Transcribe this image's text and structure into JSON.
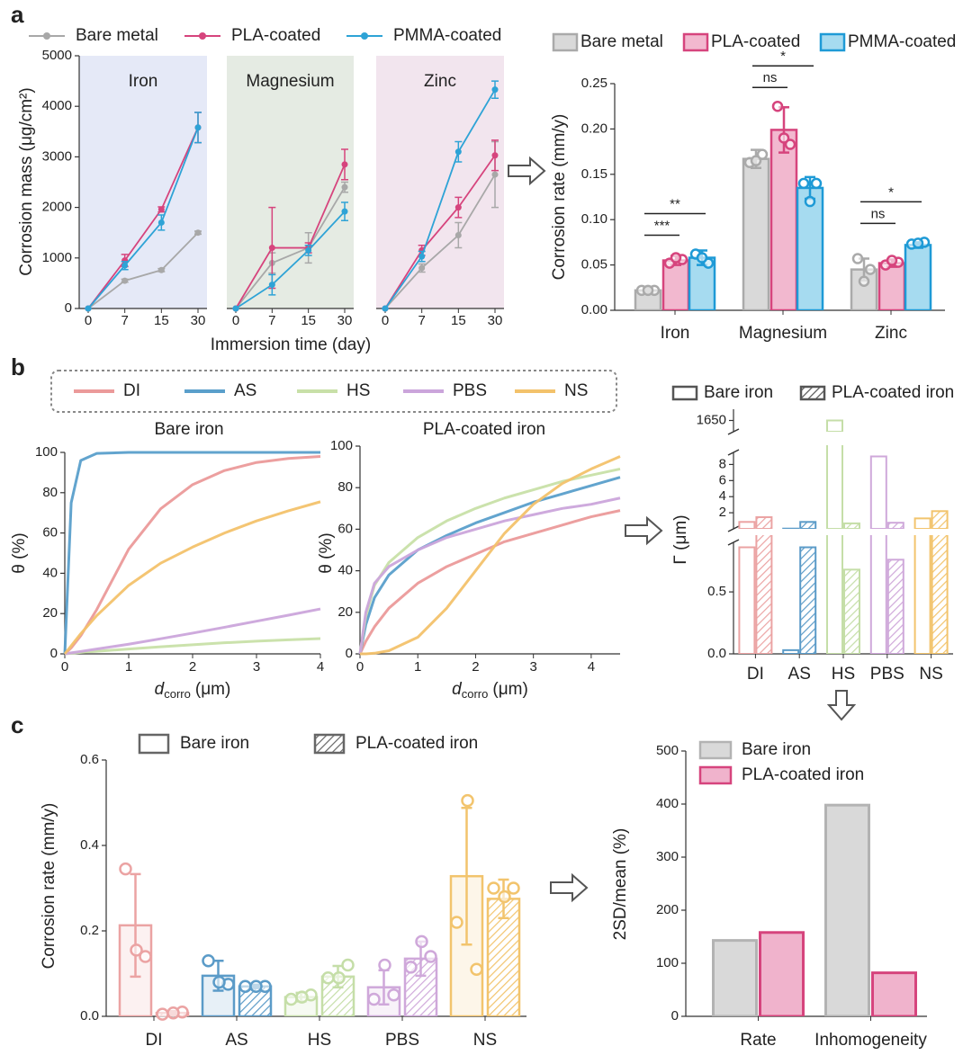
{
  "chart_data": [
    {
      "type": "line",
      "panel": "a",
      "xlabel": "Immersion time (day)",
      "ylabel": "Corrosion mass (μg/cm²)",
      "categories": [
        "0",
        "7",
        "15",
        "30"
      ],
      "ylim": [
        0,
        5000
      ],
      "yticks": [
        0,
        1000,
        2000,
        3000,
        4000,
        5000
      ],
      "series": [
        {
          "name": "Bare metal",
          "color": "#a8a8a8"
        },
        {
          "name": "PLA-coated",
          "color": "#d6447d"
        },
        {
          "name": "PMMA-coated",
          "color": "#2ea3d6"
        }
      ],
      "facets": [
        {
          "title": "Iron",
          "background": "#e5e9f7",
          "values": [
            [
              0,
              550,
              760,
              1500
            ],
            [
              0,
              950,
              1960,
              3580
            ],
            [
              0,
              850,
              1700,
              3580
            ]
          ],
          "errors": [
            [
              0,
              30,
              30,
              30
            ],
            [
              0,
              120,
              50,
              300
            ],
            [
              0,
              80,
              150,
              300
            ]
          ]
        },
        {
          "title": "Magnesium",
          "background": "#e5ebe3",
          "values": [
            [
              0,
              900,
              1200,
              2400
            ],
            [
              0,
              1200,
              1200,
              2850
            ],
            [
              0,
              470,
              1150,
              1920
            ]
          ],
          "errors": [
            [
              0,
              200,
              300,
              100
            ],
            [
              0,
              800,
              100,
              300
            ],
            [
              0,
              200,
              100,
              180
            ]
          ]
        },
        {
          "title": "Zinc",
          "background": "#f2e5ee",
          "values": [
            [
              0,
              800,
              1450,
              2650
            ],
            [
              0,
              1150,
              2000,
              3030
            ],
            [
              0,
              1030,
              3100,
              4330
            ]
          ],
          "errors": [
            [
              0,
              80,
              250,
              650
            ],
            [
              0,
              100,
              200,
              300
            ],
            [
              0,
              100,
              200,
              170
            ]
          ]
        }
      ]
    },
    {
      "type": "bar",
      "ylabel": "Corrosion rate (mm/y)",
      "categories": [
        "Iron",
        "Magnesium",
        "Zinc"
      ],
      "ylim": [
        0,
        0.25
      ],
      "yticks": [
        {
          "value": 0,
          "label": "0.00"
        },
        0.05,
        {
          "value": 0.1,
          "label": "0.10"
        },
        0.15,
        {
          "value": 0.2,
          "label": "0.20"
        },
        0.25
      ],
      "series": [
        {
          "name": "Bare metal",
          "color": "#aaaaaa",
          "fill": "#d9d9d9",
          "values": [
            0.022,
            0.167,
            0.045
          ],
          "errors": [
            0.003,
            0.01,
            0.012
          ],
          "points": [
            [
              0.022,
              0.022,
              0.022
            ],
            [
              0.163,
              0.172,
              0.165
            ],
            [
              0.057,
              0.045,
              0.032
            ]
          ]
        },
        {
          "name": "PLA-coated",
          "color": "#d6447d",
          "fill": "#f2b8cf",
          "values": [
            0.055,
            0.199,
            0.052
          ],
          "errors": [
            0.005,
            0.025,
            0.004
          ],
          "points": [
            [
              0.052,
              0.056,
              0.058
            ],
            [
              0.225,
              0.183,
              0.19
            ],
            [
              0.05,
              0.053,
              0.055
            ]
          ]
        },
        {
          "name": "PMMA-coated",
          "color": "#1e9ad6",
          "fill": "#a6dbf0",
          "values": [
            0.058,
            0.135,
            0.072
          ],
          "errors": [
            0.008,
            0.012,
            0.003
          ],
          "points": [
            [
              0.062,
              0.052,
              0.058
            ],
            [
              0.14,
              0.14,
              0.12
            ],
            [
              0.073,
              0.075,
              0.074
            ]
          ]
        }
      ],
      "annotations": [
        {
          "text": "***",
          "category": 0,
          "series": [
            0,
            1
          ]
        },
        {
          "text": "**",
          "category": 0,
          "series": [
            0,
            2
          ]
        },
        {
          "text": "ns",
          "category": 1,
          "series": [
            0,
            1
          ]
        },
        {
          "text": "*",
          "category": 1,
          "series": [
            0,
            2
          ]
        },
        {
          "text": "ns",
          "category": 2,
          "series": [
            0,
            1
          ]
        },
        {
          "text": "*",
          "category": 2,
          "series": [
            0,
            2
          ]
        }
      ]
    },
    {
      "type": "line",
      "panel": "b",
      "xlabel": "d",
      "xlabel_subscript": "corro",
      "xlabel_unit": "(μm)",
      "ylabel": "θ (%)",
      "series": [
        {
          "name": "DI",
          "color": "#eb9a9a"
        },
        {
          "name": "AS",
          "color": "#5a9fcb"
        },
        {
          "name": "HS",
          "color": "#c8e0a8"
        },
        {
          "name": "PBS",
          "color": "#cba5db"
        },
        {
          "name": "NS",
          "color": "#f3c26b"
        }
      ],
      "subplots": [
        {
          "title": "Bare iron",
          "xlim": [
            0,
            4
          ],
          "xticks": [
            0,
            1,
            2,
            3,
            4
          ],
          "ylim": [
            0,
            100
          ],
          "yticks": [
            0,
            20,
            40,
            60,
            80,
            100
          ],
          "x": [
            0,
            0.1,
            0.25,
            0.5,
            1,
            1.5,
            2,
            2.5,
            3,
            3.5,
            4
          ],
          "values": [
            [
              0,
              3,
              9,
              22,
              52,
              72,
              84,
              91,
              95,
              97,
              98
            ],
            [
              0,
              75,
              96,
              99.5,
              100,
              100,
              100,
              100,
              100,
              100,
              100
            ],
            [
              0,
              0.3,
              0.7,
              1.3,
              2.4,
              3.5,
              4.5,
              5.5,
              6.3,
              7,
              7.6
            ],
            [
              0,
              0.5,
              1.2,
              2.4,
              4.8,
              7.5,
              10.3,
              13.2,
              16.2,
              19.2,
              22.3
            ],
            [
              0,
              4,
              10,
              19,
              34,
              45,
              53,
              60,
              66,
              71,
              75.5
            ]
          ]
        },
        {
          "title": "PLA-coated iron",
          "xlim": [
            0,
            4.5
          ],
          "xticks": [
            0,
            1,
            2,
            3,
            4
          ],
          "ylim": [
            0,
            100
          ],
          "yticks": [
            0,
            20,
            40,
            60,
            80,
            100
          ],
          "x": [
            0,
            0.1,
            0.25,
            0.5,
            1,
            1.5,
            2,
            2.5,
            3,
            3.5,
            4,
            4.5
          ],
          "values": [
            [
              0,
              6,
              13,
              22,
              34,
              42,
              48,
              54,
              58,
              62,
              66,
              69
            ],
            [
              0,
              14,
              27,
              38,
              50,
              57,
              63,
              68,
              73,
              77,
              81,
              85
            ],
            [
              0,
              18,
              33,
              44,
              56,
              64,
              70,
              75,
              79,
              83,
              86,
              89
            ],
            [
              0,
              20,
              34,
              42,
              50,
              56,
              60,
              64,
              67,
              70,
              72,
              75
            ],
            [
              0,
              0,
              0.3,
              1.5,
              8,
              22,
              40,
              58,
              72,
              82,
              89,
              95
            ]
          ]
        }
      ]
    },
    {
      "type": "bar",
      "ylabel": "Γ (μm)",
      "categories": [
        "DI",
        "AS",
        "HS",
        "PBS",
        "NS"
      ],
      "category_colors": [
        "#eba3a3",
        "#5b9bc8",
        "#c5dea8",
        "#cfa8da",
        "#f2c46d"
      ],
      "legend_color": "#555555",
      "axis_segments": [
        {
          "ylim": [
            0,
            0.9
          ],
          "yticks": [
            {
              "value": 0,
              "label": "0.0"
            },
            0.5
          ]
        },
        {
          "ylim": [
            0,
            9.5
          ],
          "yticks": [
            2,
            4,
            6,
            8
          ]
        },
        {
          "ylim": [
            1645,
            1655
          ],
          "yticks": [
            1650
          ]
        }
      ],
      "series": [
        {
          "name": "Bare iron",
          "style": "outline",
          "values": [
            0.86,
            0.03,
            1650,
            9,
            1.3
          ]
        },
        {
          "name": "PLA-coated iron",
          "style": "hatched",
          "values": [
            1.45,
            0.86,
            0.68,
            0.76,
            2.2
          ]
        }
      ]
    },
    {
      "type": "bar",
      "panel": "c",
      "ylabel": "Corrosion rate (mm/y)",
      "categories": [
        "DI",
        "AS",
        "HS",
        "PBS",
        "NS"
      ],
      "category_colors": [
        "#eba3a3",
        "#5b9bc8",
        "#c5dea8",
        "#cfa8da",
        "#f2c46d"
      ],
      "legend_color": "#666666",
      "ylim": [
        0,
        0.6
      ],
      "yticks": [
        {
          "value": 0,
          "label": "0.0"
        },
        0.2,
        0.4,
        0.6
      ],
      "series": [
        {
          "name": "Bare iron",
          "style": "outline",
          "values": [
            0.213,
            0.095,
            0.045,
            0.068,
            0.328
          ],
          "errors": [
            0.12,
            0.035,
            0.01,
            0.04,
            0.16
          ],
          "points": [
            [
              0.345,
              0.14,
              0.155
            ],
            [
              0.13,
              0.075,
              0.08
            ],
            [
              0.04,
              0.05,
              0.045
            ],
            [
              0.04,
              0.05,
              0.12
            ],
            [
              0.22,
              0.11,
              0.505
            ]
          ]
        },
        {
          "name": "PLA-coated iron",
          "style": "hatched",
          "values": [
            0.008,
            0.07,
            0.093,
            0.135,
            0.275
          ],
          "errors": [
            0.004,
            0.004,
            0.025,
            0.04,
            0.045
          ],
          "points": [
            [
              0.005,
              0.01,
              0.008
            ],
            [
              0.07,
              0.07,
              0.07
            ],
            [
              0.09,
              0.12,
              0.09
            ],
            [
              0.115,
              0.14,
              0.175
            ],
            [
              0.3,
              0.3,
              0.28
            ]
          ]
        }
      ]
    },
    {
      "type": "bar",
      "ylabel": "2SD/mean (%)",
      "categories": [
        "Rate",
        "Inhomogeneity"
      ],
      "ylim": [
        0,
        500
      ],
      "yticks": [
        0,
        100,
        200,
        300,
        400,
        500
      ],
      "series": [
        {
          "name": "Bare iron",
          "color": "#b3b3b3",
          "fill": "#d9d9d9",
          "values": [
            143,
            398
          ]
        },
        {
          "name": "PLA-coated iron",
          "color": "#d6447d",
          "fill": "#f0b3cc",
          "values": [
            158,
            82
          ]
        }
      ]
    }
  ]
}
